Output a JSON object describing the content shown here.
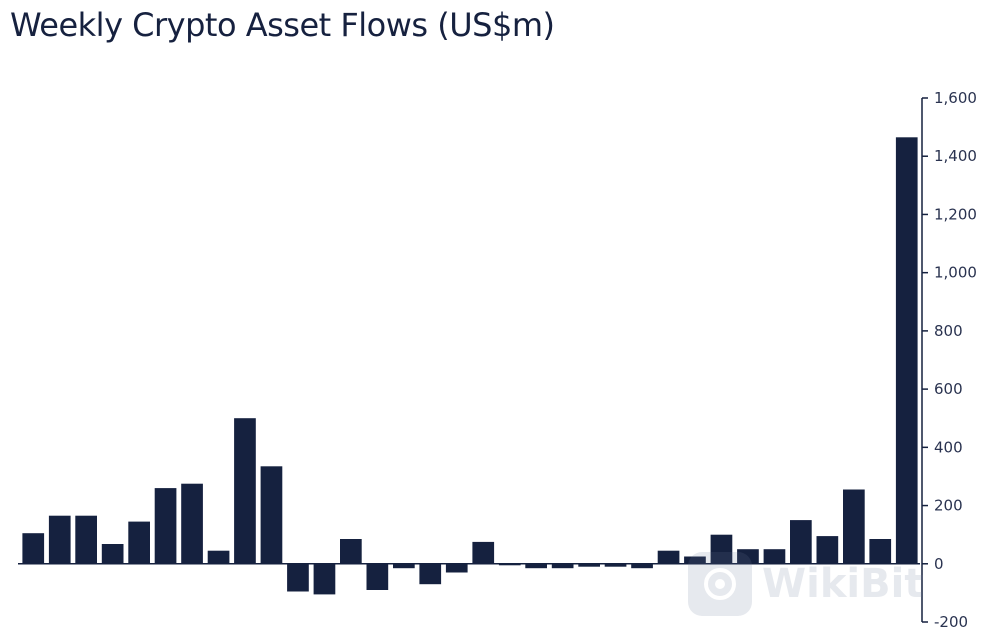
{
  "chart_data": {
    "type": "bar",
    "title": "Weekly Crypto Asset Flows (US$m)",
    "xlabel": "",
    "ylabel": "",
    "ylim": [
      -200,
      1600
    ],
    "yticks": [
      "1,600",
      "1,400",
      "1,200",
      "1,000",
      "800",
      "600",
      "400",
      "200",
      "0",
      "-200"
    ],
    "ytick_values": [
      1600,
      1400,
      1200,
      1000,
      800,
      600,
      400,
      200,
      0,
      -200
    ],
    "axis_position": "right",
    "grid": false,
    "bar_color": "#15213f",
    "values": [
      105,
      165,
      165,
      68,
      145,
      260,
      275,
      45,
      500,
      335,
      -95,
      -105,
      85,
      -90,
      -15,
      -70,
      -30,
      75,
      -5,
      -15,
      -15,
      -10,
      -10,
      -15,
      45,
      25,
      100,
      50,
      50,
      150,
      95,
      255,
      85,
      1465
    ]
  },
  "watermark": {
    "logo_icon": "wikibit-logo-icon",
    "text": "WikiBit"
  }
}
